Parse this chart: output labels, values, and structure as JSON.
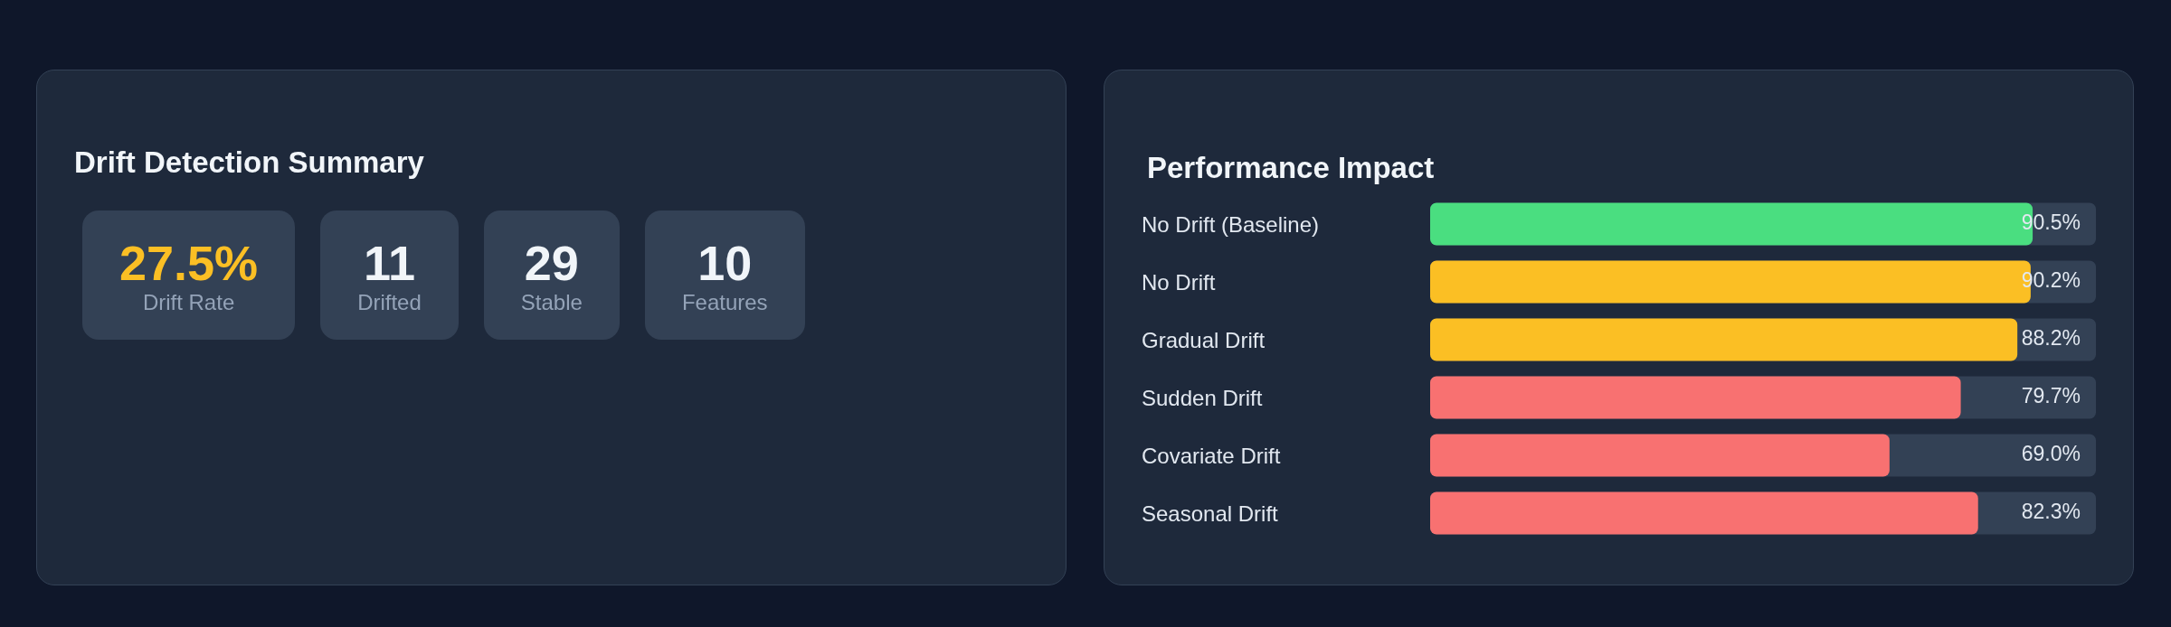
{
  "chart_data": [
    {
      "type": "other",
      "title": "Drift Detection Summary",
      "annotations": [
        "27.5%",
        "Drift Rate",
        "11",
        "Drifted",
        "29",
        "Stable",
        "10",
        "Features"
      ]
    },
    {
      "type": "bar",
      "title": "Performance Impact",
      "orientation": "horizontal",
      "categories": [
        "No Drift (Baseline)",
        "No Drift",
        "Gradual Drift",
        "Sudden Drift",
        "Covariate Drift",
        "Seasonal Drift"
      ],
      "values": [
        90.5,
        90.2,
        88.2,
        79.7,
        69.0,
        82.3
      ],
      "colors": [
        "#4ade80",
        "#fbbf24",
        "#fbbf24",
        "#f87171",
        "#f87171",
        "#f87171"
      ],
      "value_labels": [
        "90.5%",
        "90.2%",
        "88.2%",
        "79.7%",
        "69.0%",
        "82.3%"
      ],
      "xlim": [
        0,
        100
      ],
      "tick_labels": "y"
    }
  ]
}
